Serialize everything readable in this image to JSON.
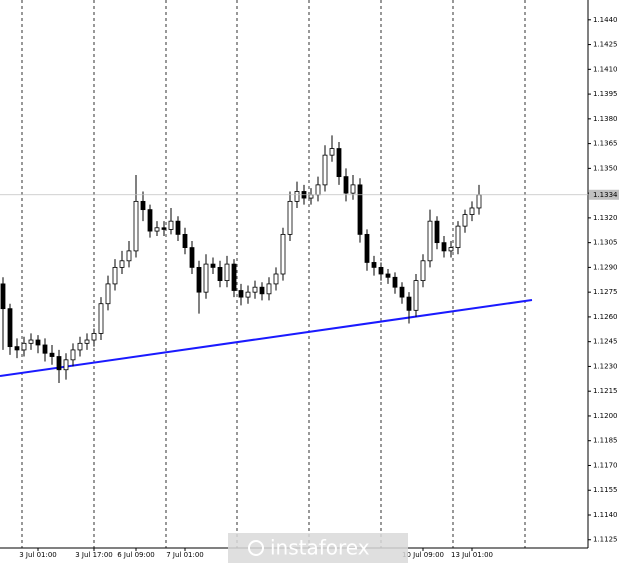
{
  "chart_data": {
    "type": "candlestick",
    "x": [
      null,
      null,
      null,
      null,
      null,
      "3 Jul 01:00",
      null,
      null,
      null,
      null,
      null,
      null,
      null,
      "3 Jul 17:00",
      null,
      null,
      null,
      null,
      null,
      "6 Jul 09:00",
      null,
      null,
      null,
      null,
      null,
      null,
      "7 Jul 01:00",
      null,
      null,
      null,
      null,
      null,
      null,
      null,
      null,
      null,
      null,
      null,
      null,
      null,
      null,
      null,
      null,
      null,
      null,
      null,
      null,
      null,
      null,
      null,
      null,
      null,
      null,
      null,
      null,
      null,
      null,
      null,
      null,
      null,
      "10 Jul 09:00",
      null,
      null,
      null,
      null,
      null,
      null,
      "13 Jul 01:00",
      null
    ],
    "open": [
      1.128,
      1.1265,
      1.1242,
      1.124,
      1.1244,
      1.1246,
      1.1243,
      1.1238,
      1.1236,
      1.1228,
      1.1234,
      1.124,
      1.1244,
      1.1246,
      1.125,
      1.1268,
      1.128,
      1.129,
      1.1294,
      1.13,
      1.133,
      1.1325,
      1.1312,
      1.1314,
      1.1313,
      1.1318,
      1.131,
      1.1302,
      1.129,
      1.1275,
      1.1292,
      1.129,
      1.1282,
      1.1292,
      1.1276,
      1.1272,
      1.1275,
      1.1278,
      1.1274,
      1.128,
      1.1286,
      1.131,
      1.133,
      1.1336,
      1.1332,
      1.1334,
      1.134,
      1.1358,
      1.1362,
      1.1345,
      1.1335,
      1.134,
      1.131,
      1.1293,
      1.129,
      1.1286,
      1.1284,
      1.1278,
      1.1272,
      1.1264,
      1.1282,
      1.1294,
      1.1318,
      1.1305,
      1.13,
      1.1302,
      1.1315,
      1.1322,
      1.1326
    ],
    "high": [
      1.1284,
      1.1268,
      1.1247,
      1.1248,
      1.125,
      1.1249,
      1.1247,
      1.1243,
      1.124,
      1.1238,
      1.1244,
      1.1248,
      1.125,
      1.1253,
      1.1272,
      1.1285,
      1.1295,
      1.13,
      1.1306,
      1.1346,
      1.1336,
      1.1328,
      1.1318,
      1.1318,
      1.1326,
      1.1321,
      1.1314,
      1.1306,
      1.1294,
      1.1298,
      1.1296,
      1.1294,
      1.1297,
      1.1295,
      1.128,
      1.1279,
      1.1282,
      1.1281,
      1.1284,
      1.129,
      1.1314,
      1.1336,
      1.1342,
      1.134,
      1.1338,
      1.1345,
      1.1364,
      1.137,
      1.1366,
      1.135,
      1.1346,
      1.1344,
      1.1313,
      1.1297,
      1.1293,
      1.1289,
      1.1287,
      1.1281,
      1.1275,
      1.1286,
      1.1298,
      1.1325,
      1.1321,
      1.1309,
      1.1306,
      1.1318,
      1.1325,
      1.133,
      1.134
    ],
    "low": [
      1.124,
      1.1237,
      1.1235,
      1.1236,
      1.124,
      1.1238,
      1.1233,
      1.1231,
      1.122,
      1.1222,
      1.123,
      1.1236,
      1.124,
      1.1242,
      1.1246,
      1.1264,
      1.1276,
      1.1286,
      1.129,
      1.1296,
      1.1318,
      1.1308,
      1.1309,
      1.1309,
      1.131,
      1.1306,
      1.1298,
      1.1286,
      1.1262,
      1.1271,
      1.1286,
      1.1278,
      1.1278,
      1.1272,
      1.1267,
      1.1268,
      1.1271,
      1.127,
      1.127,
      1.1276,
      1.1282,
      1.1306,
      1.1326,
      1.1328,
      1.1328,
      1.133,
      1.1336,
      1.1354,
      1.134,
      1.133,
      1.1331,
      1.1305,
      1.1288,
      1.1285,
      1.1282,
      1.128,
      1.1274,
      1.1268,
      1.1256,
      1.126,
      1.1278,
      1.129,
      1.1301,
      1.1296,
      1.1296,
      1.1298,
      1.1311,
      1.1318,
      1.1322
    ],
    "close": [
      1.1265,
      1.1242,
      1.124,
      1.1244,
      1.1246,
      1.1243,
      1.1238,
      1.1236,
      1.1228,
      1.1234,
      1.124,
      1.1244,
      1.1246,
      1.125,
      1.1268,
      1.128,
      1.129,
      1.1294,
      1.13,
      1.133,
      1.1325,
      1.1312,
      1.1314,
      1.1313,
      1.1318,
      1.131,
      1.1302,
      1.129,
      1.1275,
      1.1292,
      1.129,
      1.1282,
      1.1292,
      1.1276,
      1.1272,
      1.1275,
      1.1278,
      1.1274,
      1.128,
      1.1286,
      1.131,
      1.133,
      1.1336,
      1.1332,
      1.1334,
      1.134,
      1.1358,
      1.1362,
      1.1345,
      1.1335,
      1.134,
      1.131,
      1.1293,
      1.129,
      1.1286,
      1.1284,
      1.1278,
      1.1272,
      1.1264,
      1.1282,
      1.1294,
      1.1318,
      1.1305,
      1.13,
      1.1302,
      1.1315,
      1.1322,
      1.1326,
      1.1334
    ],
    "color": "#000000",
    "current_price": 1.1334,
    "ylim": [
      1.112,
      1.1452
    ],
    "yticks": [
      1.1125,
      {
        "value": 1.114,
        "label": "1.1140"
      },
      1.1155,
      {
        "value": 1.117,
        "label": "1.1170"
      },
      1.1185,
      {
        "value": 1.12,
        "label": "1.1200"
      },
      1.1215,
      {
        "value": 1.123,
        "label": "1.1230"
      },
      1.1245,
      {
        "value": 1.126,
        "label": "1.1260"
      },
      1.1275,
      {
        "value": 1.129,
        "label": "1.1290"
      },
      1.1305,
      {
        "value": 1.132,
        "label": "1.1320"
      },
      1.1335,
      {
        "value": 1.135,
        "label": "1.1350"
      },
      1.1365,
      {
        "value": 1.138,
        "label": "1.1380"
      },
      1.1395,
      {
        "value": 1.141,
        "label": "1.1410"
      },
      1.1425,
      {
        "value": 1.144,
        "label": "1.1440"
      }
    ],
    "watermark": "instaforex"
  }
}
